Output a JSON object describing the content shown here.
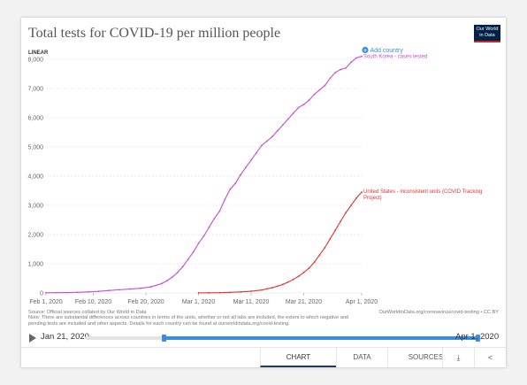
{
  "title": "Total tests for COVID-19 per million people",
  "logo": {
    "line1": "Our World",
    "line2": "in Data"
  },
  "scale_label": "LINEAR",
  "add_country_label": "Add country",
  "source_note": "Source: Official sources collated by Our World in Data\nNote: There are substantial differences across countries in terms of the units, whether or not all labs are included, the extent to which negative and pending tests are included and other aspects. Details for each country can be found at ourworldindata.org/covid-testing.",
  "url_note": "OurWorldInData.org/coronavirus/covid-testing • CC BY",
  "timeline": {
    "start": "Jan 21, 2020",
    "end": "Apr 1, 2020",
    "range_start_fraction": 0.2,
    "range_end_fraction": 1.0
  },
  "tabs": {
    "chart": "CHART",
    "data": "DATA",
    "sources": "SOURCES",
    "download_icon": "download-icon",
    "share_icon": "share-icon"
  },
  "chart_data": {
    "type": "line",
    "title": "Total tests for COVID-19 per million people",
    "x_type": "date",
    "xlim": [
      "2020-02-01",
      "2020-04-01"
    ],
    "ylim": [
      0,
      8000
    ],
    "y_ticks": [
      0,
      1000,
      2000,
      3000,
      4000,
      5000,
      6000,
      7000,
      8000
    ],
    "y_tick_labels": [
      "0",
      "1,000",
      "2,000",
      "3,000",
      "4,000",
      "5,000",
      "6,000",
      "7,000",
      "8,000"
    ],
    "x_ticks": [
      "2020-02-01",
      "2020-02-10",
      "2020-02-20",
      "2020-03-01",
      "2020-03-11",
      "2020-03-21",
      "2020-04-01"
    ],
    "x_tick_labels": [
      "Feb 1, 2020",
      "Feb 10, 2020",
      "Feb 20, 2020",
      "Mar 1, 2020",
      "Mar 11, 2020",
      "Mar 21, 2020",
      "Apr 1, 2020"
    ],
    "grid": "horizontal",
    "series": [
      {
        "name": "South Korea - cases tested",
        "color": "#c34fd1",
        "points": [
          [
            "2020-02-01",
            5
          ],
          [
            "2020-02-03",
            8
          ],
          [
            "2020-02-05",
            12
          ],
          [
            "2020-02-07",
            22
          ],
          [
            "2020-02-09",
            35
          ],
          [
            "2020-02-11",
            55
          ],
          [
            "2020-02-13",
            85
          ],
          [
            "2020-02-15",
            110
          ],
          [
            "2020-02-17",
            135
          ],
          [
            "2020-02-19",
            160
          ],
          [
            "2020-02-21",
            210
          ],
          [
            "2020-02-23",
            320
          ],
          [
            "2020-02-24",
            420
          ],
          [
            "2020-02-25",
            540
          ],
          [
            "2020-02-26",
            700
          ],
          [
            "2020-02-27",
            900
          ],
          [
            "2020-02-28",
            1150
          ],
          [
            "2020-02-29",
            1400
          ],
          [
            "2020-03-01",
            1700
          ],
          [
            "2020-03-02",
            1950
          ],
          [
            "2020-03-03",
            2250
          ],
          [
            "2020-03-04",
            2550
          ],
          [
            "2020-03-05",
            2800
          ],
          [
            "2020-03-06",
            3200
          ],
          [
            "2020-03-07",
            3550
          ],
          [
            "2020-03-08",
            3750
          ],
          [
            "2020-03-09",
            4050
          ],
          [
            "2020-03-10",
            4300
          ],
          [
            "2020-03-11",
            4550
          ],
          [
            "2020-03-12",
            4800
          ],
          [
            "2020-03-13",
            5050
          ],
          [
            "2020-03-14",
            5200
          ],
          [
            "2020-03-15",
            5350
          ],
          [
            "2020-03-16",
            5550
          ],
          [
            "2020-03-17",
            5750
          ],
          [
            "2020-03-18",
            5950
          ],
          [
            "2020-03-19",
            6150
          ],
          [
            "2020-03-20",
            6350
          ],
          [
            "2020-03-21",
            6450
          ],
          [
            "2020-03-22",
            6600
          ],
          [
            "2020-03-23",
            6800
          ],
          [
            "2020-03-24",
            6950
          ],
          [
            "2020-03-25",
            7100
          ],
          [
            "2020-03-26",
            7350
          ],
          [
            "2020-03-27",
            7550
          ],
          [
            "2020-03-28",
            7650
          ],
          [
            "2020-03-29",
            7700
          ],
          [
            "2020-03-30",
            7900
          ],
          [
            "2020-03-31",
            8050
          ],
          [
            "2020-04-01",
            8100
          ]
        ]
      },
      {
        "name": "United States - inconsistent units (COVID Tracking Project)",
        "color": "#e0342f",
        "points": [
          [
            "2020-03-01",
            2
          ],
          [
            "2020-03-03",
            5
          ],
          [
            "2020-03-05",
            10
          ],
          [
            "2020-03-07",
            20
          ],
          [
            "2020-03-09",
            35
          ],
          [
            "2020-03-11",
            60
          ],
          [
            "2020-03-13",
            100
          ],
          [
            "2020-03-14",
            140
          ],
          [
            "2020-03-15",
            180
          ],
          [
            "2020-03-16",
            230
          ],
          [
            "2020-03-17",
            290
          ],
          [
            "2020-03-18",
            370
          ],
          [
            "2020-03-19",
            460
          ],
          [
            "2020-03-20",
            570
          ],
          [
            "2020-03-21",
            700
          ],
          [
            "2020-03-22",
            850
          ],
          [
            "2020-03-23",
            1050
          ],
          [
            "2020-03-24",
            1300
          ],
          [
            "2020-03-25",
            1550
          ],
          [
            "2020-03-26",
            1850
          ],
          [
            "2020-03-27",
            2150
          ],
          [
            "2020-03-28",
            2450
          ],
          [
            "2020-03-29",
            2750
          ],
          [
            "2020-03-30",
            3000
          ],
          [
            "2020-03-31",
            3250
          ],
          [
            "2020-04-01",
            3450
          ]
        ]
      }
    ]
  }
}
